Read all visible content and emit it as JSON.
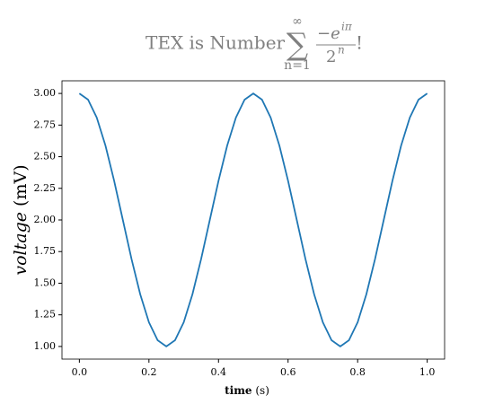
{
  "chart_data": {
    "type": "line",
    "title": {
      "text": "TEX is Number",
      "sum": "∑",
      "sum_upper": "∞",
      "sum_lower": "n=1",
      "numerator": "−e",
      "numerator_exp": "iπ",
      "denominator": "2",
      "denominator_exp": "n",
      "suffix": "!"
    },
    "xlabel": {
      "bold": "time",
      "rest": "(s)"
    },
    "ylabel": {
      "italic": "voltage",
      "rest": "(mV)"
    },
    "x": [
      0,
      0.025,
      0.05,
      0.075,
      0.1,
      0.125,
      0.15,
      0.175,
      0.2,
      0.225,
      0.25,
      0.275,
      0.3,
      0.325,
      0.35,
      0.375,
      0.4,
      0.425,
      0.45,
      0.475,
      0.5,
      0.525,
      0.55,
      0.575,
      0.6,
      0.625,
      0.65,
      0.675,
      0.7,
      0.725,
      0.75,
      0.775,
      0.8,
      0.825,
      0.85,
      0.875,
      0.9,
      0.925,
      0.95,
      0.975,
      1
    ],
    "series": [
      {
        "color": "#1f77b4",
        "values": [
          3,
          2.951,
          2.809,
          2.588,
          2.309,
          2,
          1.691,
          1.412,
          1.191,
          1.049,
          1,
          1.049,
          1.191,
          1.412,
          1.691,
          2,
          2.309,
          2.588,
          2.809,
          2.951,
          3,
          2.951,
          2.809,
          2.588,
          2.309,
          2,
          1.691,
          1.412,
          1.191,
          1.049,
          1,
          1.049,
          1.191,
          1.412,
          1.691,
          2,
          2.309,
          2.588,
          2.809,
          2.951,
          3
        ]
      }
    ],
    "xlim": [
      -0.05,
      1.05
    ],
    "ylim": [
      0.9,
      3.1
    ],
    "xticks": [
      {
        "value": 0,
        "label": "0.0"
      },
      0.2,
      0.4,
      0.6,
      0.8,
      {
        "value": 1,
        "label": "1.0"
      }
    ],
    "yticks": [
      {
        "value": 1,
        "label": "1.00"
      },
      1.25,
      {
        "value": 1.5,
        "label": "1.50"
      },
      1.75,
      {
        "value": 2,
        "label": "2.00"
      },
      2.25,
      {
        "value": 2.5,
        "label": "2.50"
      },
      2.75,
      {
        "value": 3,
        "label": "3.00"
      }
    ],
    "title_color": "#808080"
  }
}
